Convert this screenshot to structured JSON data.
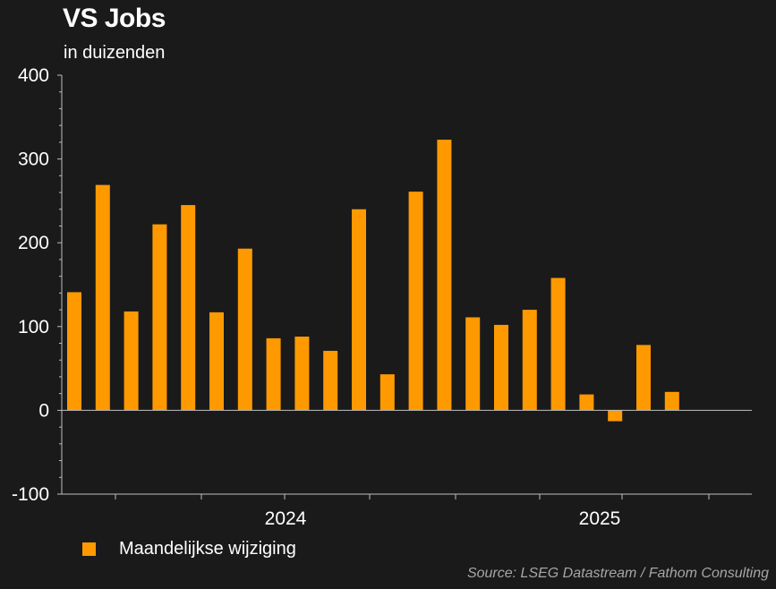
{
  "chart_data": {
    "type": "bar",
    "title": "VS Jobs",
    "subtitle": "in duizenden",
    "ylim": [
      -100,
      400
    ],
    "yticks": [
      -100,
      0,
      100,
      200,
      300,
      400
    ],
    "ytick_labels": [
      "-100",
      "0",
      "100",
      "200",
      "300",
      "400"
    ],
    "xtick_labels": [
      "2024",
      "2025"
    ],
    "grid": false,
    "legend_position": "bottom-left",
    "series": [
      {
        "name": "Maandelijkse wijziging",
        "color": "#ff9900",
        "values": [
          141,
          269,
          118,
          222,
          245,
          117,
          193,
          86,
          88,
          71,
          240,
          43,
          261,
          323,
          111,
          102,
          120,
          158,
          19,
          -13,
          78,
          22
        ]
      }
    ]
  },
  "source": "Source: LSEG Datastream / Fathom Consulting",
  "colors": {
    "background": "#1a1a1a",
    "text": "#ffffff",
    "axis": "#bfbfbf",
    "source_text": "#a6a6a6"
  }
}
